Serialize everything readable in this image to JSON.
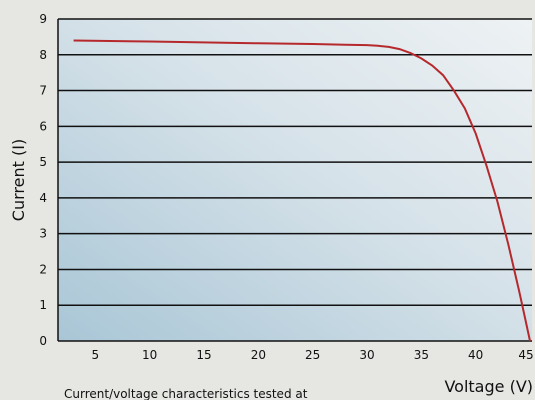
{
  "chart_data": {
    "type": "line",
    "xlabel": "Voltage (V)",
    "ylabel": "Current (I)",
    "xlim": [
      3,
      45
    ],
    "ylim": [
      0,
      9
    ],
    "x_ticks": [
      {
        "value": 5,
        "label": "5"
      },
      {
        "value": 10,
        "label": "10"
      },
      {
        "value": 15,
        "label": "15"
      },
      {
        "value": 20,
        "label": "20"
      },
      {
        "value": 25,
        "label": "25"
      },
      {
        "value": 30,
        "label": "30"
      },
      {
        "value": 35,
        "label": "35"
      },
      {
        "value": 40,
        "label": "40"
      },
      {
        "value": 45,
        "label": "45"
      }
    ],
    "y_ticks": [
      {
        "value": 0,
        "label": "0"
      },
      {
        "value": 1,
        "label": "1"
      },
      {
        "value": 2,
        "label": "2"
      },
      {
        "value": 3,
        "label": "3"
      },
      {
        "value": 4,
        "label": "4"
      },
      {
        "value": 5,
        "label": "5"
      },
      {
        "value": 6,
        "label": "6"
      },
      {
        "value": 7,
        "label": "7"
      },
      {
        "value": 8,
        "label": "8"
      },
      {
        "value": 9,
        "label": "9"
      }
    ],
    "grid": true,
    "series": [
      {
        "color": "#b5292d",
        "x": [
          3,
          10,
          20,
          25,
          28,
          30,
          31,
          32,
          33,
          34,
          35,
          36,
          37,
          38,
          39,
          40,
          41,
          42,
          43,
          44,
          44.5,
          45
        ],
        "y": [
          8.4,
          8.37,
          8.32,
          8.3,
          8.28,
          8.27,
          8.25,
          8.22,
          8.16,
          8.05,
          7.9,
          7.7,
          7.43,
          7.0,
          6.5,
          5.8,
          4.9,
          3.9,
          2.7,
          1.4,
          0.7,
          0
        ]
      }
    ],
    "caption": "Current/voltage characteristics tested at"
  },
  "colors": {
    "plot_bg_start": "#a9c6d6",
    "plot_bg_end": "#eef2f4",
    "page_bg": "#e6e6e3",
    "gridline": "#111111",
    "curve": "#b5292d"
  }
}
